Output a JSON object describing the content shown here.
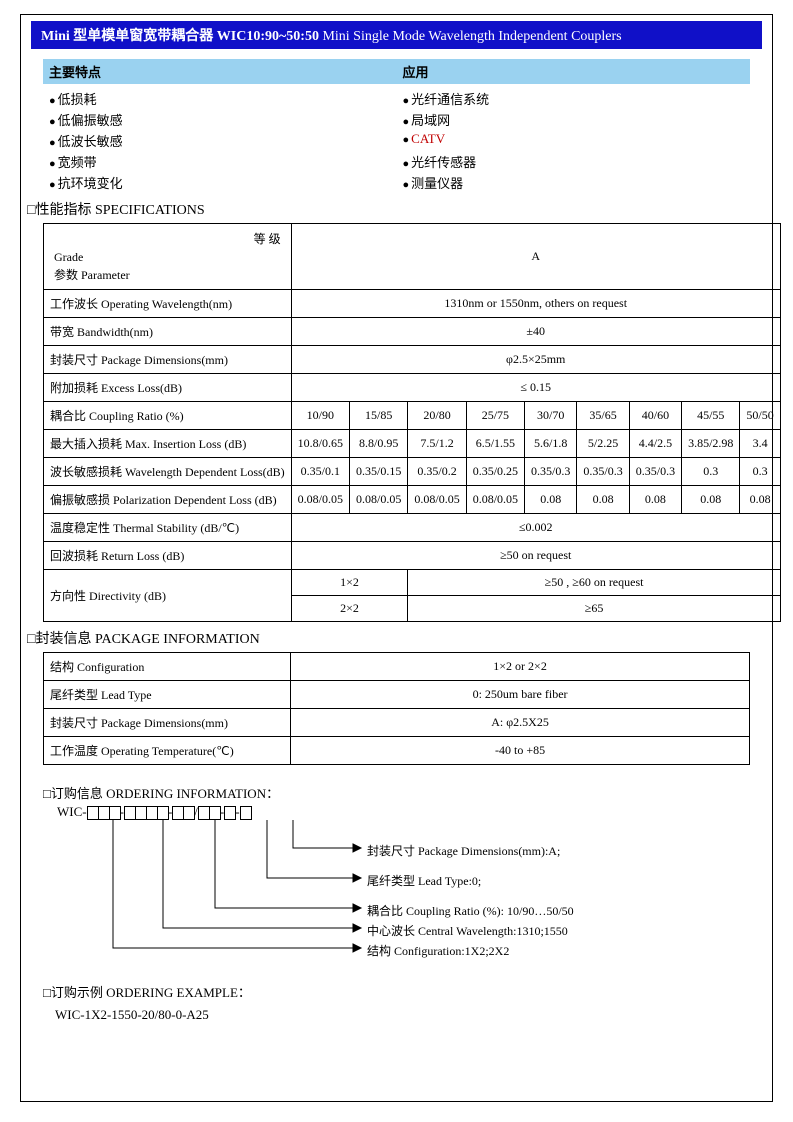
{
  "title": {
    "main": "Mini 型单模单窗宽带耦合器 WIC10:90~50:50",
    "sub": "Mini Single Mode Wavelength Independent Couplers"
  },
  "features": {
    "left_header": "主要特点",
    "right_header": "应用",
    "left": [
      "低损耗",
      "低偏振敏感",
      "低波长敏感",
      "宽频带",
      "抗环境变化"
    ],
    "right": [
      "光纤通信系统",
      "局域网",
      "CATV",
      "光纤传感器",
      "测量仪器"
    ]
  },
  "sections": {
    "specs": "□性能指标  SPECIFICATIONS",
    "package": "□封装信息  PACKAGE INFORMATION",
    "ordering": "□订购信息 ORDERING INFORMATION：",
    "example": "□订购示例 ORDERING EXAMPLE："
  },
  "spec": {
    "grade_label_cn": "等 级",
    "grade_label_en": "Grade",
    "param_label": "参数 Parameter",
    "grade_value": "A",
    "rows_simple": [
      {
        "label": "工作波长 Operating Wavelength(nm)",
        "value": "1310nm or 1550nm, others on request"
      },
      {
        "label": "带宽  Bandwidth(nm)",
        "value": "±40"
      },
      {
        "label": "封装尺寸 Package Dimensions(mm)",
        "value": "φ2.5×25mm"
      },
      {
        "label": "附加损耗  Excess Loss(dB)",
        "value": "≤  0.15"
      }
    ],
    "ratio_header": "耦合比  Coupling Ratio (%)",
    "ratios": [
      "10/90",
      "15/85",
      "20/80",
      "25/75",
      "30/70",
      "35/65",
      "40/60",
      "45/55",
      "50/50"
    ],
    "data_rows": [
      {
        "label": "最大插入损耗  Max. Insertion Loss (dB)",
        "vals": [
          "10.8/0.65",
          "8.8/0.95",
          "7.5/1.2",
          "6.5/1.55",
          "5.6/1.8",
          "5/2.25",
          "4.4/2.5",
          "3.85/2.98",
          "3.4"
        ]
      },
      {
        "label": "波长敏感损耗  Wavelength Dependent Loss(dB)",
        "vals": [
          "0.35/0.1",
          "0.35/0.15",
          "0.35/0.2",
          "0.35/0.25",
          "0.35/0.3",
          "0.35/0.3",
          "0.35/0.3",
          "0.3",
          "0.3"
        ]
      },
      {
        "label": "偏振敏感损  Polarization Dependent Loss (dB)",
        "vals": [
          "0.08/0.05",
          "0.08/0.05",
          "0.08/0.05",
          "0.08/0.05",
          "0.08",
          "0.08",
          "0.08",
          "0.08",
          "0.08"
        ]
      }
    ],
    "thermal": {
      "label": "温度稳定性  Thermal Stability (dB/℃)",
      "value": "≤0.002"
    },
    "return_loss": {
      "label": "回波损耗    Return Loss (dB)",
      "value": "≥50    on request"
    },
    "directivity": {
      "label": "方向性  Directivity (dB)",
      "r1a": "1×2",
      "r1b": "≥50 ,  ≥60    on request",
      "r2a": "2×2",
      "r2b": "≥65"
    }
  },
  "pkg": {
    "rows": [
      {
        "label": "结构  Configuration",
        "value": "1×2 or 2×2"
      },
      {
        "label": "尾纤类型  Lead Type",
        "value": "0: 250um bare fiber"
      },
      {
        "label": "封装尺寸 Package Dimensions(mm)",
        "value": "A:  φ2.5X25"
      },
      {
        "label": "工作温度 Operating Temperature(℃)",
        "value": "-40 to +85"
      }
    ]
  },
  "ordering": {
    "prefix": "WIC-",
    "labels": [
      "封装尺寸 Package Dimensions(mm):A;",
      "尾纤类型 Lead Type:0;",
      "耦合比 Coupling Ratio (%): 10/90…50/50",
      "中心波长 Central Wavelength:1310;1550",
      "结构 Configuration:1X2;2X2"
    ]
  },
  "example": "WIC-1X2-1550-20/80-0-A25",
  "colors": {
    "title_bg": "#1010c8",
    "feature_bg": "#9ad2f0",
    "catv": "#c00000"
  }
}
